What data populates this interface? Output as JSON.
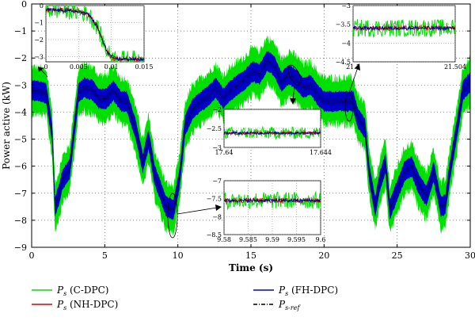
{
  "chart_data": {
    "type": "line",
    "xlabel": "Time (s)",
    "ylabel": "Power active (kW)",
    "xlim": [
      0,
      30
    ],
    "ylim": [
      -9,
      0
    ],
    "xticks": [
      0,
      5,
      10,
      15,
      20,
      25,
      30
    ],
    "yticks": [
      0,
      -1,
      -2,
      -3,
      -4,
      -5,
      -6,
      -7,
      -8,
      -9
    ],
    "grid": true,
    "legend_position": "bottom",
    "legend": [
      {
        "symbol": "P",
        "sub": "s",
        "label": " (C-DPC)",
        "color": "#00e000",
        "dash": "solid"
      },
      {
        "symbol": "P",
        "sub": "s",
        "label": " (FH-DPC)",
        "color": "#0000cc",
        "dash": "solid"
      },
      {
        "symbol": "P",
        "sub": "s",
        "label": " (NH-DPC)",
        "color": "#e00000",
        "dash": "solid"
      },
      {
        "symbol": "P",
        "sub": "s-ref",
        "label": "",
        "color": "#000000",
        "dash": "dashdot"
      }
    ],
    "reference": {
      "x": [
        0,
        0.3,
        1.0,
        1.4,
        1.6,
        1.9,
        2.1,
        2.6,
        3.2,
        3.6,
        4.2,
        4.6,
        5.1,
        5.6,
        6.1,
        6.5,
        7.1,
        7.6,
        8.0,
        8.4,
        8.8,
        9.2,
        9.7,
        10.1,
        10.5,
        11.0,
        11.6,
        12.1,
        12.6,
        13.1,
        13.6,
        14.1,
        14.6,
        15.1,
        15.6,
        16.1,
        16.6,
        17.1,
        17.6,
        18.1,
        18.6,
        19.1,
        19.6,
        20.0,
        20.3,
        20.5,
        21.5,
        22.0,
        22.3,
        22.8,
        23.1,
        23.5,
        23.8,
        24.2,
        24.5,
        25.0,
        25.5,
        26.0,
        26.5,
        27.0,
        27.5,
        28.0,
        28.3,
        28.6,
        29.1,
        29.5,
        30
      ],
      "y": [
        -3.2,
        -3.2,
        -3.3,
        -4.8,
        -7.5,
        -7.0,
        -6.5,
        -6.1,
        -3.3,
        -3.1,
        -3.2,
        -3.5,
        -3.5,
        -3.2,
        -3.6,
        -3.6,
        -4.6,
        -5.9,
        -5.0,
        -6.3,
        -6.9,
        -7.5,
        -7.6,
        -6.5,
        -4.5,
        -3.9,
        -3.6,
        -3.4,
        -3.1,
        -3.5,
        -3.2,
        -3.0,
        -2.8,
        -2.5,
        -2.6,
        -2.1,
        -2.3,
        -2.9,
        -2.6,
        -2.8,
        -3.1,
        -3.0,
        -3.4,
        -3.6,
        -3.6,
        -3.6,
        -3.6,
        -3.6,
        -4.2,
        -4.6,
        -6.3,
        -7.5,
        -6.6,
        -5.9,
        -7.6,
        -6.9,
        -6.2,
        -6.0,
        -6.7,
        -7.1,
        -6.2,
        -7.5,
        -7.4,
        -6.2,
        -4.6,
        -3.2,
        -2.9
      ],
      "blue_band_kw": 0.35,
      "green_band_kw": 0.8
    },
    "insets": [
      {
        "name": "inset-start",
        "xlim": [
          0,
          0.015
        ],
        "ylim": [
          -3.3,
          0
        ],
        "xticks": [
          0,
          0.005,
          0.01,
          0.015
        ],
        "xtick_labels": [
          "0",
          "0.005",
          "0.01",
          "0.015"
        ],
        "yticks": [
          0,
          -1,
          -2,
          -3
        ],
        "ytick_labels": [
          "0",
          "−1",
          "−2",
          "−3"
        ],
        "ref": {
          "x": [
            0,
            0.004,
            0.0065,
            0.0078,
            0.0088,
            0.0095,
            0.0105,
            0.012,
            0.015
          ],
          "y": [
            -0.25,
            -0.3,
            -0.5,
            -1.2,
            -2.2,
            -2.8,
            -3.1,
            -3.15,
            -3.15
          ]
        }
      },
      {
        "name": "inset-21s",
        "xlim": [
          21.5,
          21.504
        ],
        "ylim": [
          -4.5,
          -3
        ],
        "xticks": [
          21.5,
          21.504
        ],
        "xtick_labels": [
          "21.5",
          "21.504"
        ],
        "yticks": [
          -3,
          -3.5,
          -4,
          -4.5
        ],
        "ytick_labels": [
          "−3",
          "−3.5",
          "−4",
          "−4.5"
        ],
        "ref": {
          "x": [
            21.5,
            21.504
          ],
          "y": [
            -3.6,
            -3.6
          ]
        }
      },
      {
        "name": "inset-17s",
        "xlim": [
          17.64,
          17.644
        ],
        "ylim": [
          -3,
          -2
        ],
        "xticks": [
          17.64,
          17.644
        ],
        "xtick_labels": [
          "17.64",
          "17.644"
        ],
        "yticks": [
          -2,
          -2.5,
          -3
        ],
        "ytick_labels": [
          "−2",
          "−2.5",
          "−3"
        ],
        "ref": {
          "x": [
            17.64,
            17.644
          ],
          "y": [
            -2.62,
            -2.62
          ]
        }
      },
      {
        "name": "inset-9s",
        "xlim": [
          9.58,
          9.6
        ],
        "ylim": [
          -8.5,
          -7
        ],
        "xticks": [
          9.58,
          9.585,
          9.59,
          9.595,
          9.6
        ],
        "xtick_labels": [
          "9.58",
          "9.585",
          "9.59",
          "9.595",
          "9.6"
        ],
        "yticks": [
          -7,
          -7.5,
          -8,
          -8.5
        ],
        "ytick_labels": [
          "−7",
          "−7.5",
          "−8",
          "−8.5"
        ],
        "ref": {
          "x": [
            9.58,
            9.6
          ],
          "y": [
            -7.55,
            -7.55
          ]
        }
      }
    ]
  }
}
